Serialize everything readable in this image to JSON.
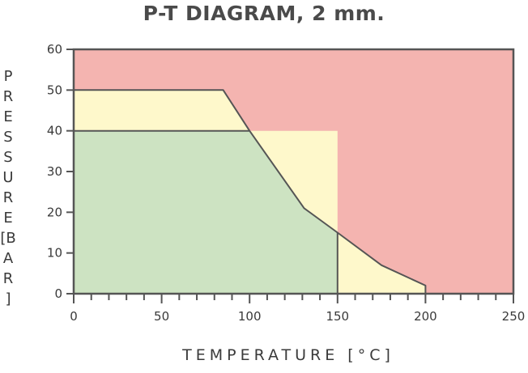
{
  "chart_data": {
    "type": "area",
    "title": "P-T DIAGRAM, 2 mm.",
    "xlabel": "TEMPERATURE [°C]",
    "ylabel": "PRESSURE [BAR]",
    "xlim": [
      0,
      250
    ],
    "ylim": [
      0,
      60
    ],
    "xticks": [
      0,
      50,
      100,
      150,
      200,
      250
    ],
    "yticks": [
      0,
      10,
      20,
      30,
      40,
      50,
      60
    ],
    "x_minor_step": 10,
    "regions": [
      {
        "color": "#f4b4b0",
        "polygon": [
          [
            0,
            0
          ],
          [
            250,
            0
          ],
          [
            250,
            60
          ],
          [
            0,
            60
          ]
        ]
      },
      {
        "color": "#fef8cb",
        "polygon": [
          [
            0,
            50
          ],
          [
            85,
            50
          ],
          [
            100,
            40
          ],
          [
            131,
            21
          ],
          [
            150,
            15
          ],
          [
            175,
            7
          ],
          [
            200,
            2
          ],
          [
            200,
            0
          ],
          [
            150,
            0
          ],
          [
            150,
            40
          ],
          [
            0,
            40
          ]
        ]
      },
      {
        "color": "#cde3c2",
        "polygon": [
          [
            0,
            0
          ],
          [
            0,
            40
          ],
          [
            100,
            40
          ],
          [
            131,
            21
          ],
          [
            150,
            15
          ],
          [
            150,
            0
          ]
        ]
      }
    ],
    "boundary_lines": [
      [
        [
          0,
          50
        ],
        [
          85,
          50
        ],
        [
          100,
          40
        ],
        [
          131,
          21
        ],
        [
          150,
          15
        ],
        [
          175,
          7
        ],
        [
          200,
          2
        ],
        [
          200,
          0
        ]
      ],
      [
        [
          0,
          40
        ],
        [
          100,
          40
        ]
      ],
      [
        [
          150,
          15
        ],
        [
          150,
          0
        ]
      ]
    ],
    "grid": false,
    "colors": {
      "line": "#555555",
      "frame": "#555555",
      "text": "#3a3a3a"
    }
  }
}
